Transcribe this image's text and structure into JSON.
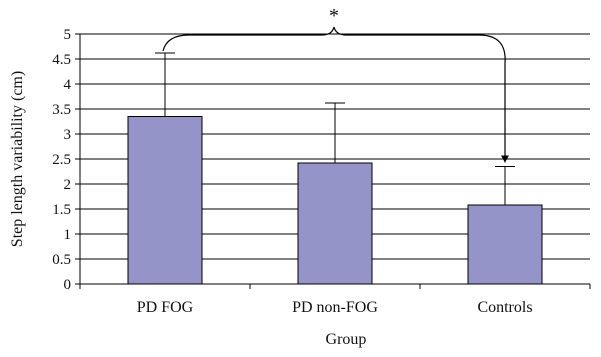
{
  "chart_data": {
    "type": "bar",
    "title": "",
    "xlabel": "Group",
    "ylabel": "Step length variability (cm)",
    "categories": [
      "PD FOG",
      "PD non-FOG",
      "Controls"
    ],
    "values": [
      3.35,
      2.42,
      1.58
    ],
    "error_upper": [
      4.62,
      3.62,
      2.35
    ],
    "ylim": [
      0,
      5
    ],
    "yticks": [
      "0",
      "0.5",
      "1",
      "1.5",
      "2",
      "2.5",
      "3",
      "3.5",
      "4",
      "4.5",
      "5"
    ],
    "grid": true,
    "legend": "none",
    "annotation": {
      "text": "*",
      "from_category": "PD FOG",
      "to_category": "Controls"
    },
    "colors": {
      "bar": "#9494C8",
      "bar_edge": "#000000",
      "grid": "#000000",
      "axis": "#000000"
    }
  }
}
